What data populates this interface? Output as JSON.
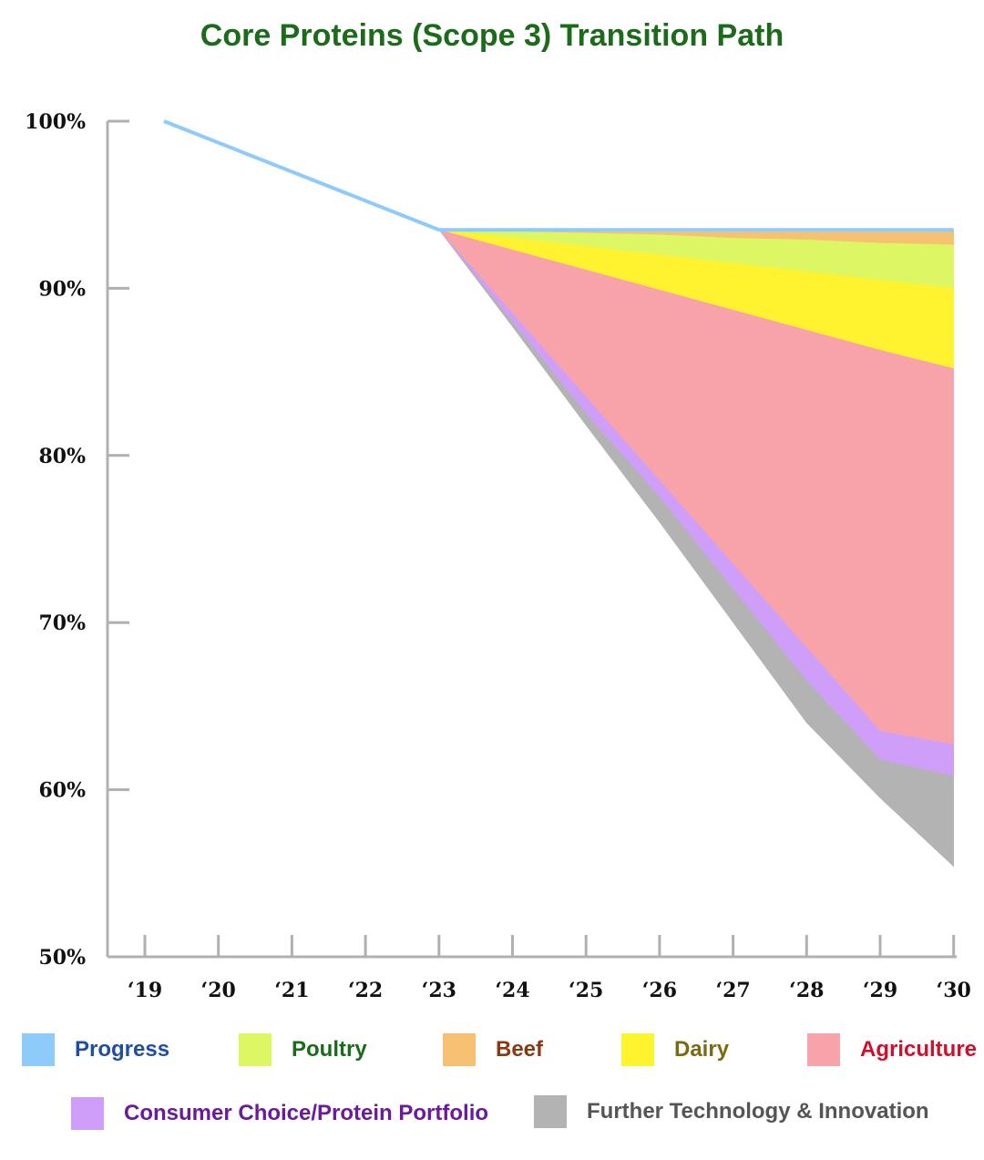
{
  "chart_data": {
    "type": "area",
    "title": "Core Proteins (Scope 3) Transition Path",
    "x": [
      "‘19",
      "‘20",
      "‘21",
      "‘22",
      "‘23",
      "‘24",
      "‘25",
      "‘26",
      "‘27",
      "‘28",
      "‘29",
      "‘30"
    ],
    "y_ticks": [
      "100%",
      "90%",
      "80%",
      "70%",
      "60%",
      "50%"
    ],
    "ylim": [
      50,
      100
    ],
    "progress": {
      "name": "Progress",
      "x": [
        "‘19",
        "‘23",
        "‘30"
      ],
      "values": [
        100,
        93.5,
        93.5
      ]
    },
    "series": [
      {
        "name": "Beef",
        "upper": [
          93.5,
          93.5,
          93.5,
          93.5,
          93.5,
          93.5,
          93.5,
          93.5
        ],
        "lower": [
          93.5,
          93.4,
          93.3,
          93.2,
          93.0,
          92.9,
          92.7,
          92.6
        ]
      },
      {
        "name": "Poultry",
        "upper": [
          93.5,
          93.4,
          93.3,
          93.2,
          93.0,
          92.9,
          92.7,
          92.6
        ],
        "lower": [
          93.5,
          93.0,
          92.5,
          92.0,
          91.5,
          91.0,
          90.5,
          90.0
        ]
      },
      {
        "name": "Dairy",
        "upper": [
          93.5,
          93.0,
          92.5,
          92.0,
          91.5,
          91.0,
          90.5,
          90.0
        ],
        "lower": [
          93.5,
          92.3,
          91.1,
          89.9,
          88.7,
          87.5,
          86.3,
          85.2
        ]
      },
      {
        "name": "Agriculture",
        "upper": [
          93.5,
          92.3,
          91.1,
          89.9,
          88.7,
          87.5,
          86.3,
          85.2
        ],
        "lower": [
          93.5,
          88.5,
          83.5,
          78.5,
          73.5,
          68.5,
          63.5,
          62.7
        ]
      },
      {
        "name": "Consumer Choice/Protein Portfolio",
        "upper": [
          93.5,
          88.5,
          83.5,
          78.5,
          73.5,
          68.5,
          63.5,
          62.7
        ],
        "lower": [
          93.5,
          88.0,
          82.5,
          77.5,
          72.0,
          66.5,
          61.8,
          60.8
        ]
      },
      {
        "name": "Further Technology & Innovation",
        "upper": [
          93.5,
          88.0,
          82.5,
          77.5,
          72.0,
          66.5,
          61.8,
          60.8
        ],
        "lower": [
          93.5,
          87.7,
          81.8,
          76.0,
          70.0,
          64.0,
          59.5,
          55.4
        ]
      }
    ],
    "series_x": [
      "‘23",
      "‘24",
      "‘25",
      "‘26",
      "‘27",
      "‘28",
      "‘29",
      "‘30"
    ],
    "colors": {
      "Progress": "#8ecbfa",
      "Poultry": "#dcf763",
      "Beef": "#f6c173",
      "Dairy": "#fff330",
      "Agriculture": "#f8a3aa",
      "Consumer Choice/Protein Portfolio": "#cf9ef8",
      "Further Technology & Innovation": "#b3b3b3"
    },
    "legend": [
      {
        "label": "Progress",
        "color": "#8ecbfa",
        "text_color": "#1f4fa1"
      },
      {
        "label": "Poultry",
        "color": "#dcf763",
        "text_color": "#1b6b1b"
      },
      {
        "label": "Beef",
        "color": "#f6c173",
        "text_color": "#8a3a12"
      },
      {
        "label": "Dairy",
        "color": "#fff330",
        "text_color": "#7a6a10"
      },
      {
        "label": "Agriculture",
        "color": "#f8a3aa",
        "text_color": "#d0102a"
      },
      {
        "label": "Consumer Choice/Protein Portfolio",
        "color": "#cf9ef8",
        "text_color": "#6a1a9a"
      },
      {
        "label": "Further Technology & Innovation",
        "color": "#b3b3b3",
        "text_color": "#555555"
      }
    ]
  }
}
